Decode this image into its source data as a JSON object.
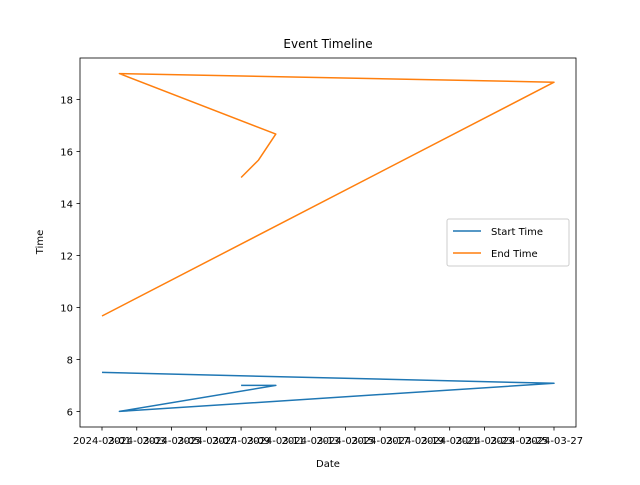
{
  "chart_data": {
    "type": "line",
    "title": "Event Timeline",
    "xlabel": "Date",
    "ylabel": "Time",
    "x_ticks": [
      "2024-03-01",
      "2024-03-03",
      "2024-03-05",
      "2024-03-07",
      "2024-03-09",
      "2024-03-11",
      "2024-03-13",
      "2024-03-15",
      "2024-03-17",
      "2024-03-19",
      "2024-03-21",
      "2024-03-23",
      "2024-03-25",
      "2024-03-27"
    ],
    "y_ticks": [
      6,
      8,
      10,
      12,
      14,
      16,
      18
    ],
    "xlim": [
      "2024-03-01",
      "2024-03-27"
    ],
    "ylim": [
      5.4,
      19.6
    ],
    "legend_position": "center-right",
    "grid": false,
    "series": [
      {
        "name": "Start Time",
        "color": "#1f77b4",
        "points": [
          {
            "x": "2024-03-01",
            "y": 7.5
          },
          {
            "x": "2024-03-27",
            "y": 7.08
          },
          {
            "x": "2024-03-02",
            "y": 6.0
          },
          {
            "x": "2024-03-11",
            "y": 7.0
          },
          {
            "x": "2024-03-09",
            "y": 7.0
          }
        ]
      },
      {
        "name": "End Time",
        "color": "#ff7f0e",
        "points": [
          {
            "x": "2024-03-01",
            "y": 9.67
          },
          {
            "x": "2024-03-27",
            "y": 18.67
          },
          {
            "x": "2024-03-02",
            "y": 19.0
          },
          {
            "x": "2024-03-11",
            "y": 16.67
          },
          {
            "x": "2024-03-10",
            "y": 15.67
          },
          {
            "x": "2024-03-09",
            "y": 15.0
          }
        ]
      }
    ]
  }
}
